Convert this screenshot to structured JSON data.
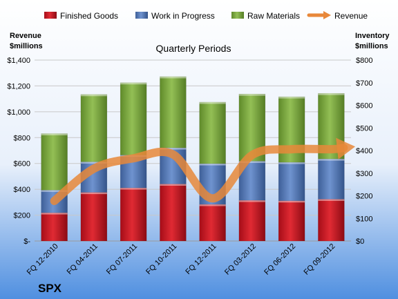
{
  "chart_data": {
    "type": "bar",
    "stacked": true,
    "title": "Quarterly Periods",
    "company": "SPX",
    "categories": [
      "FQ 12-2010",
      "FQ 04-2011",
      "FQ 07-2011",
      "FQ 10-2011",
      "FQ 12-2011",
      "FQ 03-2012",
      "FQ 06-2012",
      "FQ 09-2012"
    ],
    "series": [
      {
        "name": "Finished Goods",
        "axis": "right",
        "color": "#c0121e",
        "values": [
          125,
          215,
          235,
          252,
          162,
          180,
          178,
          185
        ]
      },
      {
        "name": "Work in Progress",
        "axis": "right",
        "color": "#4d72b0",
        "values": [
          100,
          135,
          145,
          160,
          180,
          173,
          170,
          178
        ]
      },
      {
        "name": "Raw Materials",
        "axis": "right",
        "color": "#77a33a",
        "values": [
          250,
          298,
          320,
          315,
          272,
          297,
          290,
          290
        ]
      }
    ],
    "line_series": {
      "name": "Revenue",
      "axis": "left",
      "color": "#e8883a",
      "values": [
        310,
        560,
        640,
        670,
        330,
        665,
        710,
        710
      ]
    },
    "left_axis": {
      "title_line1": "Revenue",
      "title_line2": "$millions",
      "ylim": [
        0,
        1400
      ],
      "ticks": [
        0,
        200,
        400,
        600,
        800,
        1000,
        1200,
        1400
      ],
      "tick_labels": [
        "$-",
        "$200",
        "$400",
        "$600",
        "$800",
        "$1,000",
        "$1,200",
        "$1,400"
      ]
    },
    "right_axis": {
      "title_line1": "Inventory",
      "title_line2": "$millions",
      "ylim": [
        0,
        800
      ],
      "ticks": [
        0,
        100,
        200,
        300,
        400,
        500,
        600,
        700,
        800
      ],
      "tick_labels": [
        "$0",
        "$100",
        "$200",
        "$300",
        "$400",
        "$500",
        "$600",
        "$700",
        "$800"
      ]
    },
    "legend": {
      "position": "top",
      "items": [
        "Finished Goods",
        "Work in Progress",
        "Raw Materials",
        "Revenue"
      ]
    },
    "grid": true
  }
}
